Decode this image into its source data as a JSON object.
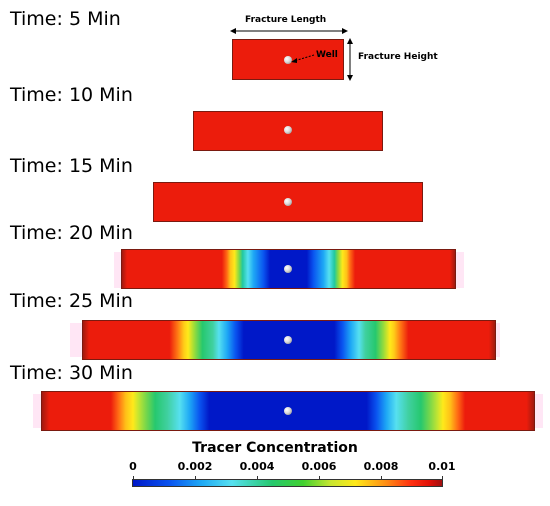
{
  "time_labels": [
    "Time: 5 Min",
    "Time: 10 Min",
    "Time: 15 Min",
    "Time: 20 Min",
    "Time: 25 Min",
    "Time: 30 Min"
  ],
  "annotations": {
    "fracture_length": "Fracture Length",
    "fracture_height": "Fracture Height",
    "well": "Well"
  },
  "colorbar": {
    "title": "Tracer Concentration",
    "ticks": [
      "0",
      "0.002",
      "0.004",
      "0.006",
      "0.008",
      "0.01"
    ],
    "range": [
      0,
      0.01
    ]
  },
  "colors": {
    "saturated": "#ec1c0c",
    "low": "#0018c8",
    "edge": "#a01a10"
  }
}
